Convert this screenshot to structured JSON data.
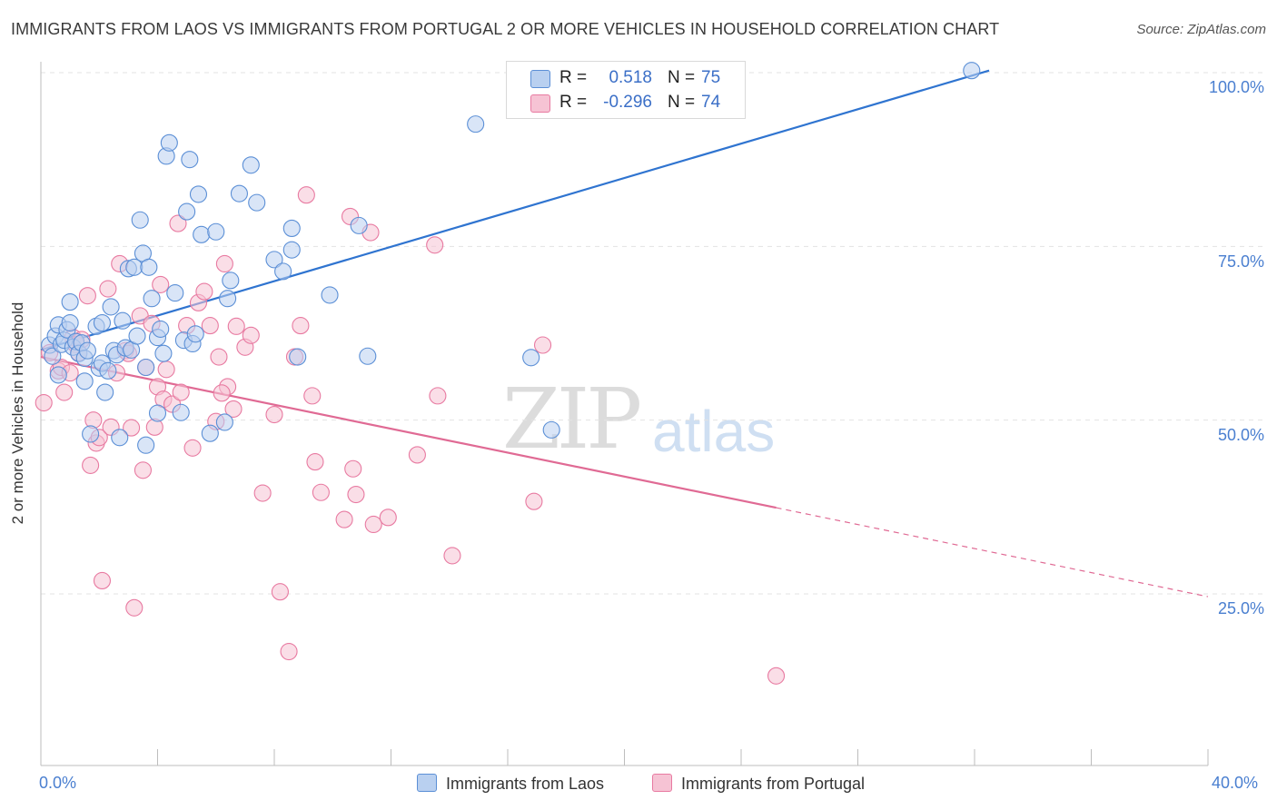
{
  "title": "IMMIGRANTS FROM LAOS VS IMMIGRANTS FROM PORTUGAL 2 OR MORE VEHICLES IN HOUSEHOLD CORRELATION CHART",
  "source": "Source: ZipAtlas.com",
  "watermark": {
    "zip": "ZIP",
    "atlas": "atlas"
  },
  "colors": {
    "laos": "#5b8fd6",
    "laos_fill": "#b9d0f0",
    "portugal": "#e87aa1",
    "portugal_fill": "#f6c3d4",
    "tick_text": "#4a7fd0",
    "grid": "#e3e3e3"
  },
  "legend_top": {
    "laos": {
      "r_label": "R =",
      "r_value": "0.518",
      "n_label": "N =",
      "n_value": "75"
    },
    "portugal": {
      "r_label": "R =",
      "r_value": "-0.296",
      "n_label": "N =",
      "n_value": "74"
    }
  },
  "legend_bottom": {
    "laos": "Immigrants from Laos",
    "portugal": "Immigrants from Portugal"
  },
  "chart_data": {
    "type": "scatter",
    "title": "IMMIGRANTS FROM LAOS VS IMMIGRANTS FROM PORTUGAL 2 OR MORE VEHICLES IN HOUSEHOLD CORRELATION CHART",
    "xlabel": "",
    "ylabel": "2 or more Vehicles in Household",
    "xlim": [
      0,
      40
    ],
    "ylim": [
      0,
      102
    ],
    "x_tick_labels": [
      "0.0%",
      "40.0%"
    ],
    "y_ticks": [
      25,
      50,
      75,
      100
    ],
    "y_tick_labels": [
      "25.0%",
      "50.0%",
      "75.0%",
      "100.0%"
    ],
    "grid": true,
    "legend": "top-center",
    "series": [
      {
        "name": "Immigrants from Laos",
        "r": 0.518,
        "n": 75,
        "trend": {
          "x": [
            0.0,
            32.5
          ],
          "y": [
            60.1,
            100.3
          ],
          "dashed_extension": false
        },
        "points": [
          [
            0.3,
            60.8
          ],
          [
            0.4,
            59.2
          ],
          [
            0.5,
            62.1
          ],
          [
            0.6,
            56.5
          ],
          [
            0.6,
            63.7
          ],
          [
            0.7,
            60.9
          ],
          [
            0.8,
            61.5
          ],
          [
            0.9,
            63.0
          ],
          [
            1.0,
            64.0
          ],
          [
            1.0,
            67.0
          ],
          [
            1.1,
            60.5
          ],
          [
            1.2,
            61.3
          ],
          [
            1.3,
            59.6
          ],
          [
            1.4,
            61.1
          ],
          [
            1.5,
            58.9
          ],
          [
            1.5,
            55.6
          ],
          [
            1.6,
            60.0
          ],
          [
            1.7,
            48.0
          ],
          [
            1.9,
            63.5
          ],
          [
            2.0,
            57.5
          ],
          [
            2.1,
            58.2
          ],
          [
            2.1,
            64.0
          ],
          [
            2.2,
            54.0
          ],
          [
            2.3,
            57.1
          ],
          [
            2.4,
            66.3
          ],
          [
            2.5,
            60.0
          ],
          [
            2.6,
            59.4
          ],
          [
            2.7,
            47.5
          ],
          [
            2.8,
            64.3
          ],
          [
            2.9,
            60.4
          ],
          [
            3.0,
            71.8
          ],
          [
            3.1,
            60.1
          ],
          [
            3.2,
            72.0
          ],
          [
            3.3,
            62.1
          ],
          [
            3.4,
            78.8
          ],
          [
            3.5,
            74.0
          ],
          [
            3.6,
            46.4
          ],
          [
            3.6,
            57.6
          ],
          [
            3.7,
            72.0
          ],
          [
            3.8,
            67.5
          ],
          [
            4.0,
            51.0
          ],
          [
            4.0,
            61.9
          ],
          [
            4.1,
            63.1
          ],
          [
            4.2,
            59.6
          ],
          [
            4.3,
            88.0
          ],
          [
            4.4,
            89.9
          ],
          [
            4.6,
            68.3
          ],
          [
            4.8,
            51.1
          ],
          [
            4.9,
            61.5
          ],
          [
            5.0,
            80.0
          ],
          [
            5.1,
            87.5
          ],
          [
            5.2,
            61.0
          ],
          [
            5.3,
            62.4
          ],
          [
            5.4,
            82.5
          ],
          [
            5.5,
            76.7
          ],
          [
            5.8,
            48.1
          ],
          [
            6.0,
            77.1
          ],
          [
            6.3,
            49.7
          ],
          [
            6.4,
            67.5
          ],
          [
            6.5,
            70.1
          ],
          [
            6.8,
            82.6
          ],
          [
            7.2,
            86.7
          ],
          [
            7.4,
            81.3
          ],
          [
            8.0,
            73.1
          ],
          [
            8.3,
            71.4
          ],
          [
            8.6,
            77.6
          ],
          [
            8.8,
            59.1
          ],
          [
            8.6,
            74.5
          ],
          [
            9.9,
            68.0
          ],
          [
            10.9,
            78.0
          ],
          [
            11.2,
            59.2
          ],
          [
            14.9,
            92.6
          ],
          [
            16.8,
            59.0
          ],
          [
            17.5,
            48.6
          ],
          [
            31.9,
            100.3
          ]
        ]
      },
      {
        "name": "Immigrants from Portugal",
        "r": -0.296,
        "n": 74,
        "trend": {
          "x": [
            0.0,
            25.2
          ],
          "y": [
            59.1,
            37.4
          ],
          "dashed_extension": true,
          "dashed_to": {
            "x": [
              25.2,
              40.0
            ],
            "y": [
              37.4,
              24.6
            ]
          }
        },
        "points": [
          [
            0.1,
            52.5
          ],
          [
            0.3,
            59.7
          ],
          [
            0.6,
            57.1
          ],
          [
            0.7,
            57.6
          ],
          [
            0.8,
            54.0
          ],
          [
            1.0,
            56.8
          ],
          [
            1.1,
            61.9
          ],
          [
            1.2,
            60.9
          ],
          [
            1.3,
            59.7
          ],
          [
            1.4,
            61.6
          ],
          [
            1.6,
            67.9
          ],
          [
            1.7,
            43.5
          ],
          [
            1.8,
            50.0
          ],
          [
            1.9,
            46.7
          ],
          [
            2.0,
            47.5
          ],
          [
            2.1,
            26.9
          ],
          [
            2.3,
            68.9
          ],
          [
            2.4,
            49.0
          ],
          [
            2.6,
            56.8
          ],
          [
            2.7,
            72.5
          ],
          [
            2.9,
            60.0
          ],
          [
            3.0,
            59.6
          ],
          [
            3.1,
            48.9
          ],
          [
            3.2,
            23.0
          ],
          [
            3.4,
            65.0
          ],
          [
            3.5,
            42.8
          ],
          [
            3.6,
            57.6
          ],
          [
            3.8,
            63.9
          ],
          [
            4.0,
            54.8
          ],
          [
            4.1,
            69.5
          ],
          [
            4.2,
            53.0
          ],
          [
            4.3,
            57.3
          ],
          [
            4.5,
            52.3
          ],
          [
            4.7,
            78.3
          ],
          [
            4.8,
            54.0
          ],
          [
            5.0,
            63.6
          ],
          [
            5.2,
            46.0
          ],
          [
            5.4,
            66.9
          ],
          [
            5.6,
            68.5
          ],
          [
            5.8,
            63.6
          ],
          [
            6.0,
            49.8
          ],
          [
            6.1,
            59.1
          ],
          [
            6.3,
            72.5
          ],
          [
            6.4,
            54.8
          ],
          [
            6.6,
            51.6
          ],
          [
            6.7,
            63.5
          ],
          [
            7.0,
            60.5
          ],
          [
            7.2,
            62.2
          ],
          [
            7.6,
            39.5
          ],
          [
            8.0,
            50.8
          ],
          [
            8.2,
            25.3
          ],
          [
            8.5,
            16.7
          ],
          [
            8.7,
            59.1
          ],
          [
            8.9,
            63.6
          ],
          [
            9.1,
            82.4
          ],
          [
            9.3,
            53.5
          ],
          [
            9.4,
            44.0
          ],
          [
            9.6,
            39.6
          ],
          [
            10.4,
            35.7
          ],
          [
            10.6,
            79.3
          ],
          [
            10.7,
            43.0
          ],
          [
            10.8,
            39.3
          ],
          [
            11.3,
            77.0
          ],
          [
            11.4,
            35.0
          ],
          [
            11.9,
            36.0
          ],
          [
            12.9,
            45.0
          ],
          [
            13.5,
            75.2
          ],
          [
            13.6,
            53.5
          ],
          [
            14.1,
            30.5
          ],
          [
            16.9,
            38.3
          ],
          [
            17.2,
            60.8
          ],
          [
            25.2,
            13.2
          ],
          [
            6.2,
            53.9
          ],
          [
            3.9,
            49.0
          ]
        ]
      }
    ]
  }
}
